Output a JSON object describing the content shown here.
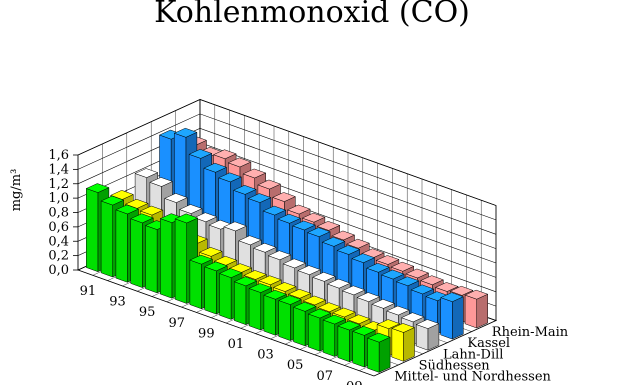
{
  "chart_data": {
    "type": "bar",
    "subtype": "3d-grouped",
    "title": "Kohlenmonoxid (CO)",
    "ylabel": "mg/m³",
    "ylim": [
      0,
      1.6
    ],
    "yticks": [
      "0,0",
      "0,2",
      "0,4",
      "0,6",
      "0,8",
      "1,0",
      "1,2",
      "1,4",
      "1,6"
    ],
    "xticks": [
      "91",
      "93",
      "95",
      "97",
      "99",
      "01",
      "03",
      "05",
      "07",
      "09"
    ],
    "years": [
      1990,
      1991,
      1992,
      1993,
      1994,
      1995,
      1996,
      1997,
      1998,
      1999,
      2000,
      2001,
      2002,
      2003,
      2004,
      2005,
      2006,
      2007,
      2008,
      2009
    ],
    "grid": true,
    "series": [
      {
        "name": "Mittel- und Nordhessen",
        "color": "#00e000",
        "values": [
          1.1,
          1.0,
          0.95,
          0.9,
          0.88,
          1.05,
          1.12,
          0.62,
          0.6,
          0.58,
          0.54,
          0.52,
          0.5,
          0.5,
          0.48,
          0.46,
          0.45,
          0.44,
          0.44,
          0.42
        ]
      },
      {
        "name": "Südhessen",
        "color": "#ffff00",
        "values": [
          0.85,
          0.8,
          0.78,
          0.65,
          0.55,
          0.6,
          0.5,
          0.45,
          0.42,
          0.4,
          0.4,
          0.38,
          0.36,
          0.34,
          0.32,
          0.32,
          0.3,
          0.28,
          0.38,
          0.4
        ]
      },
      {
        "name": "Lahn-Dill",
        "color": "#e0e0e0",
        "values": [
          1.0,
          0.95,
          0.8,
          0.72,
          0.68,
          0.65,
          0.7,
          0.58,
          0.55,
          0.52,
          0.48,
          0.46,
          0.44,
          0.42,
          0.4,
          0.38,
          0.36,
          0.34,
          0.32,
          0.3
        ]
      },
      {
        "name": "Kassel",
        "color": "#1a90ff",
        "values": [
          1.38,
          1.48,
          1.26,
          1.14,
          1.08,
          0.98,
          0.94,
          0.84,
          0.8,
          0.78,
          0.76,
          0.7,
          0.66,
          0.62,
          0.56,
          0.54,
          0.52,
          0.48,
          0.46,
          0.52
        ]
      },
      {
        "name": "Rhein-Main",
        "color": "#ff9898",
        "values": [
          1.14,
          1.06,
          1.1,
          1.06,
          0.98,
          0.9,
          0.8,
          0.7,
          0.66,
          0.62,
          0.56,
          0.52,
          0.46,
          0.44,
          0.42,
          0.4,
          0.38,
          0.36,
          0.38,
          0.4
        ]
      }
    ]
  }
}
